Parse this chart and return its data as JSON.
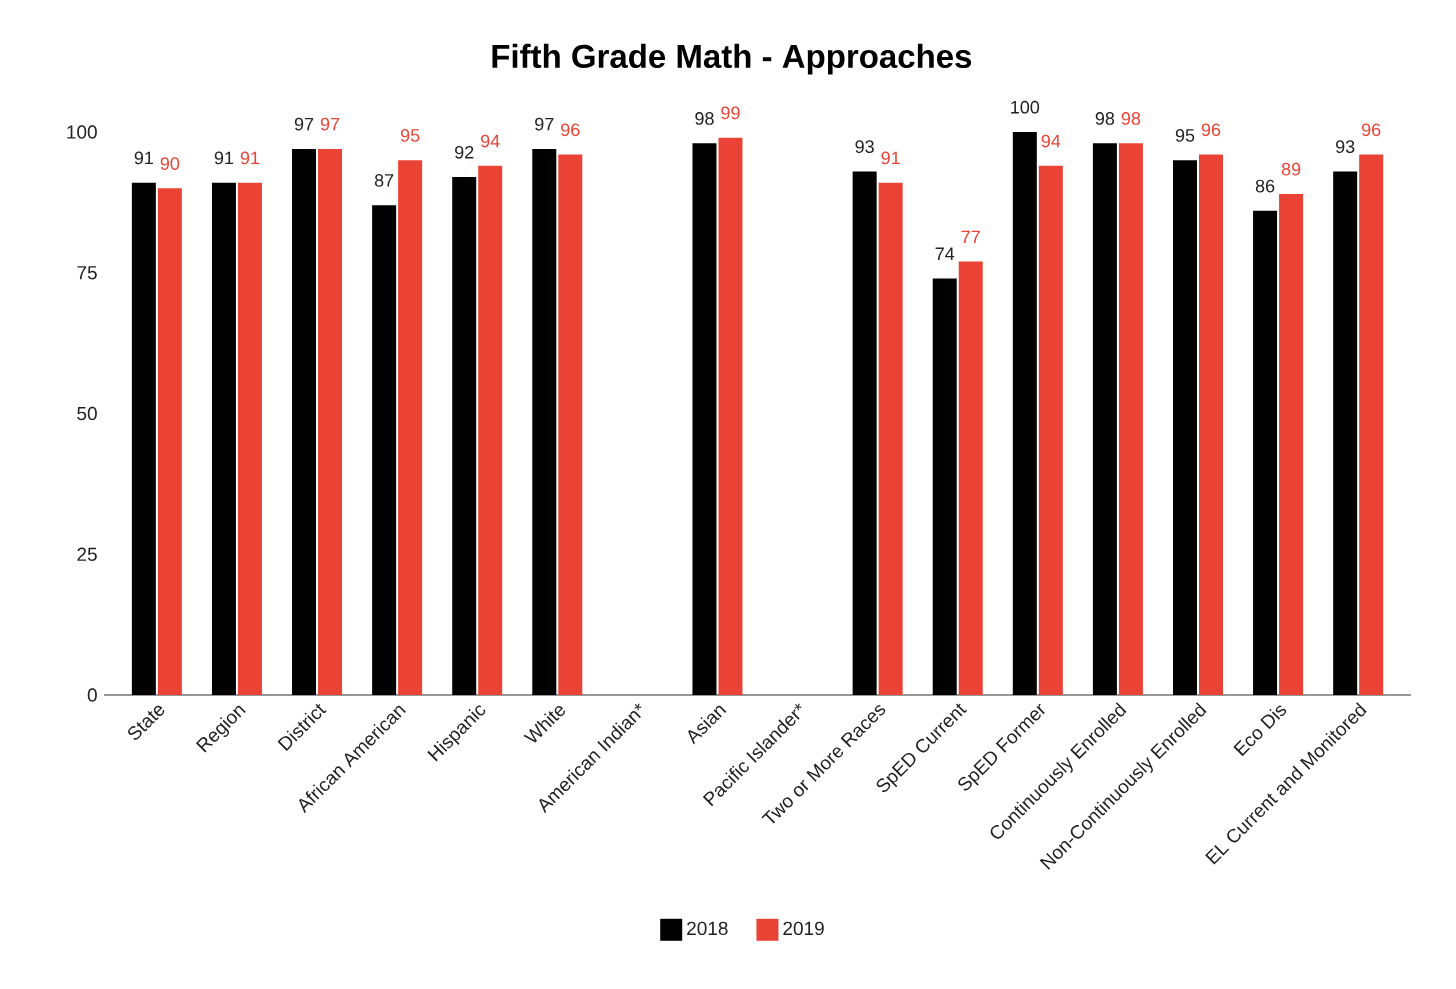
{
  "chart_data": {
    "type": "bar",
    "title": "Fifth Grade Math - Approaches",
    "categories": [
      "State",
      "Region",
      "District",
      "African American",
      "Hispanic",
      "White",
      "American Indian*",
      "Asian",
      "Pacific Islander*",
      "Two or More Races",
      "SpED Current",
      "SpED Former",
      "Continuously Enrolled",
      "Non-Continuously Enrolled",
      "Eco Dis",
      "EL Current and Monitored"
    ],
    "series": [
      {
        "name": "2018",
        "color": "#000000",
        "values": [
          91,
          91,
          97,
          87,
          92,
          97,
          null,
          98,
          null,
          93,
          74,
          100,
          98,
          95,
          86,
          93
        ]
      },
      {
        "name": "2019",
        "color": "#ea4335",
        "values": [
          90,
          91,
          97,
          95,
          94,
          96,
          null,
          99,
          null,
          91,
          77,
          94,
          98,
          96,
          89,
          96
        ]
      }
    ],
    "ylim": [
      0,
      100
    ],
    "yticks": [
      0,
      25,
      50,
      75,
      100
    ],
    "data_labels": true,
    "legend": "bottom"
  }
}
